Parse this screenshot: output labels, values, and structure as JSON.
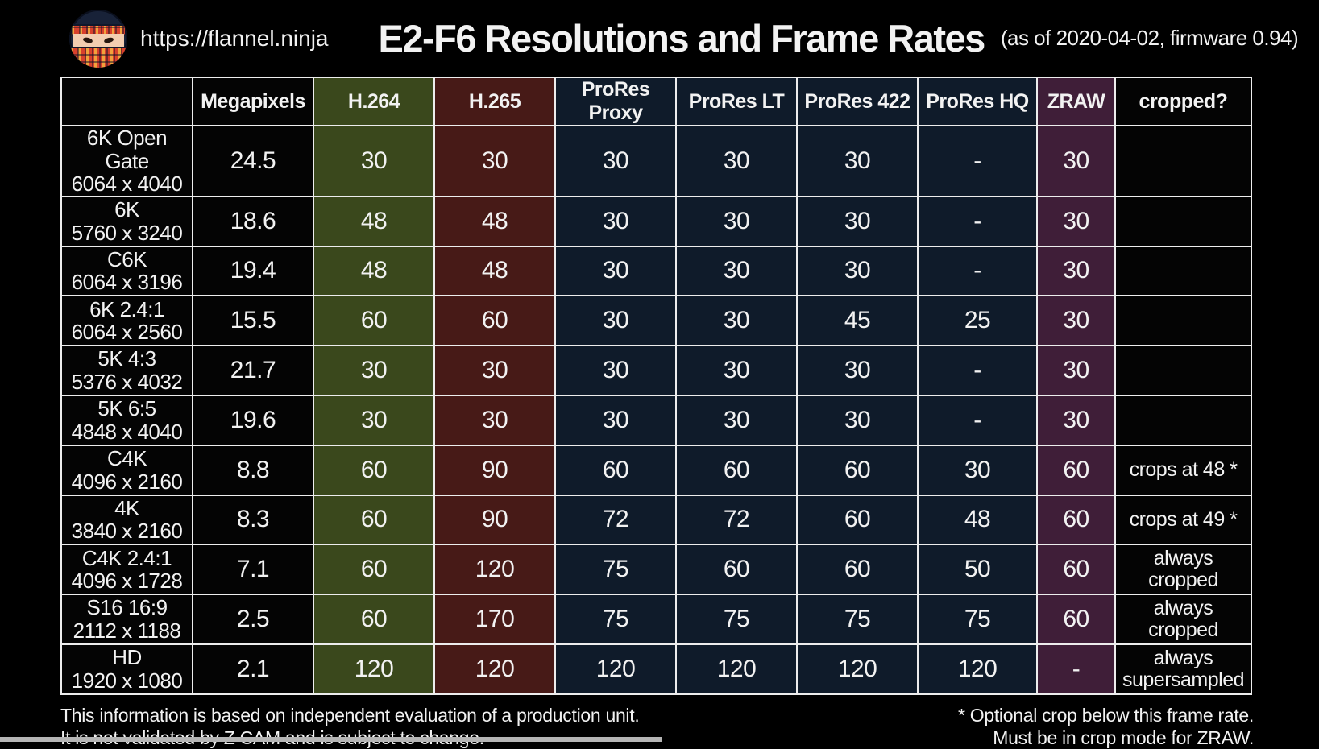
{
  "header": {
    "logo_icon": "ninja-avatar",
    "site_url": "https://flannel.ninja",
    "title": "E2-F6 Resolutions and Frame Rates",
    "subtitle": "(as of 2020-04-02, firmware 0.94)"
  },
  "table": {
    "columns": [
      {
        "key": "label",
        "label": "",
        "color": "#040404"
      },
      {
        "key": "megapixels",
        "label": "Megapixels",
        "color": "#040404"
      },
      {
        "key": "h264",
        "label": "H.264",
        "color": "#3a481c"
      },
      {
        "key": "h265",
        "label": "H.265",
        "color": "#471a17"
      },
      {
        "key": "prores_proxy",
        "label": "ProRes Proxy",
        "color": "#0f1b2a"
      },
      {
        "key": "prores_lt",
        "label": "ProRes LT",
        "color": "#0f1b2a"
      },
      {
        "key": "prores_422",
        "label": "ProRes 422",
        "color": "#0f1b2a"
      },
      {
        "key": "prores_hq",
        "label": "ProRes HQ",
        "color": "#0f1b2a"
      },
      {
        "key": "zraw",
        "label": "ZRAW",
        "color": "#3f1e38"
      },
      {
        "key": "cropped",
        "label": "cropped?",
        "color": "#040404"
      }
    ]
  },
  "chart_data": {
    "type": "table",
    "title": "E2-F6 Resolutions and Frame Rates",
    "subtitle": "(as of 2020-04-02, firmware 0.94)",
    "columns": [
      "",
      "Megapixels",
      "H.264",
      "H.265",
      "ProRes Proxy",
      "ProRes LT",
      "ProRes 422",
      "ProRes HQ",
      "ZRAW",
      "cropped?"
    ],
    "rows": [
      {
        "name": "6K Open Gate",
        "resolution": "6064 x 4040",
        "megapixels": "24.5",
        "h264": "30",
        "h265": "30",
        "prores_proxy": "30",
        "prores_lt": "30",
        "prores_422": "30",
        "prores_hq": "-",
        "zraw": "30",
        "cropped": ""
      },
      {
        "name": "6K",
        "resolution": "5760 x 3240",
        "megapixels": "18.6",
        "h264": "48",
        "h265": "48",
        "prores_proxy": "30",
        "prores_lt": "30",
        "prores_422": "30",
        "prores_hq": "-",
        "zraw": "30",
        "cropped": ""
      },
      {
        "name": "C6K",
        "resolution": "6064 x 3196",
        "megapixels": "19.4",
        "h264": "48",
        "h265": "48",
        "prores_proxy": "30",
        "prores_lt": "30",
        "prores_422": "30",
        "prores_hq": "-",
        "zraw": "30",
        "cropped": ""
      },
      {
        "name": "6K 2.4:1",
        "resolution": "6064 x 2560",
        "megapixels": "15.5",
        "h264": "60",
        "h265": "60",
        "prores_proxy": "30",
        "prores_lt": "30",
        "prores_422": "45",
        "prores_hq": "25",
        "zraw": "30",
        "cropped": ""
      },
      {
        "name": "5K 4:3",
        "resolution": "5376 x 4032",
        "megapixels": "21.7",
        "h264": "30",
        "h265": "30",
        "prores_proxy": "30",
        "prores_lt": "30",
        "prores_422": "30",
        "prores_hq": "-",
        "zraw": "30",
        "cropped": ""
      },
      {
        "name": "5K 6:5",
        "resolution": "4848 x 4040",
        "megapixels": "19.6",
        "h264": "30",
        "h265": "30",
        "prores_proxy": "30",
        "prores_lt": "30",
        "prores_422": "30",
        "prores_hq": "-",
        "zraw": "30",
        "cropped": ""
      },
      {
        "name": "C4K",
        "resolution": "4096 x 2160",
        "megapixels": "8.8",
        "h264": "60",
        "h265": "90",
        "prores_proxy": "60",
        "prores_lt": "60",
        "prores_422": "60",
        "prores_hq": "30",
        "zraw": "60",
        "cropped": "crops at 48 *"
      },
      {
        "name": "4K",
        "resolution": "3840 x 2160",
        "megapixels": "8.3",
        "h264": "60",
        "h265": "90",
        "prores_proxy": "72",
        "prores_lt": "72",
        "prores_422": "60",
        "prores_hq": "48",
        "zraw": "60",
        "cropped": "crops at 49 *"
      },
      {
        "name": "C4K 2.4:1",
        "resolution": "4096 x 1728",
        "megapixels": "7.1",
        "h264": "60",
        "h265": "120",
        "prores_proxy": "75",
        "prores_lt": "60",
        "prores_422": "60",
        "prores_hq": "50",
        "zraw": "60",
        "cropped": "always cropped"
      },
      {
        "name": "S16 16:9",
        "resolution": "2112 x 1188",
        "megapixels": "2.5",
        "h264": "60",
        "h265": "170",
        "prores_proxy": "75",
        "prores_lt": "75",
        "prores_422": "75",
        "prores_hq": "75",
        "zraw": "60",
        "cropped": "always cropped"
      },
      {
        "name": "HD",
        "resolution": "1920 x 1080",
        "megapixels": "2.1",
        "h264": "120",
        "h265": "120",
        "prores_proxy": "120",
        "prores_lt": "120",
        "prores_422": "120",
        "prores_hq": "120",
        "zraw": "-",
        "cropped": "always supersampled"
      }
    ]
  },
  "footer": {
    "left_line1": "This information is based on independent evaluation of a production unit.",
    "left_line2": "It is not validated by Z CAM and is subject to change.",
    "right_line1": "* Optional crop below this frame rate.",
    "right_line2": "Must be in crop mode for ZRAW."
  }
}
